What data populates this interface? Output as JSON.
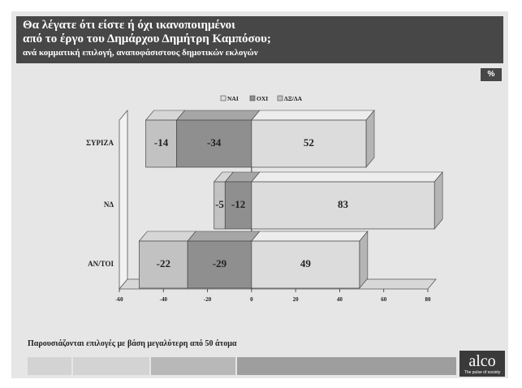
{
  "header": {
    "title_line1": "Θα λέγατε ότι είστε ή όχι ικανοποιημένοι",
    "title_line2": "από το έργο του Δημάρχου Δημήτρη Καμπόσου;",
    "subtitle": "ανά κομματική επιλογή, αναποφάσιστους δημοτικών εκλογών"
  },
  "unit_badge": "%",
  "footer_note": "Παρουσιάζονται επιλογές με βάση μεγαλύτερη από 50 άτομα",
  "logo": {
    "word": "alco",
    "tagline": "The pulse of society"
  },
  "colors": {
    "header_bg": "#474747",
    "nai": "#dcdcdc",
    "oxi": "#8f8f8f",
    "dxda": "#c2c2c2"
  },
  "chart_data": {
    "type": "bar",
    "orientation": "horizontal",
    "stacked": true,
    "categories": [
      "ΣΥΡΙΖΑ",
      "ΝΔ",
      "ΑΝ/ΤΟΙ"
    ],
    "series": [
      {
        "name": "ΝΑΙ",
        "values": [
          52,
          83,
          49
        ]
      },
      {
        "name": "ΟΧΙ",
        "values": [
          -34,
          -12,
          -29
        ]
      },
      {
        "name": "ΔΞ/ΔΑ",
        "values": [
          -14,
          -5,
          -22
        ]
      }
    ],
    "xlim": [
      -60,
      80
    ],
    "xticks": [
      -60,
      -40,
      -20,
      0,
      20,
      40,
      60,
      80
    ],
    "grid": false,
    "legend": "top",
    "style": "3d"
  }
}
